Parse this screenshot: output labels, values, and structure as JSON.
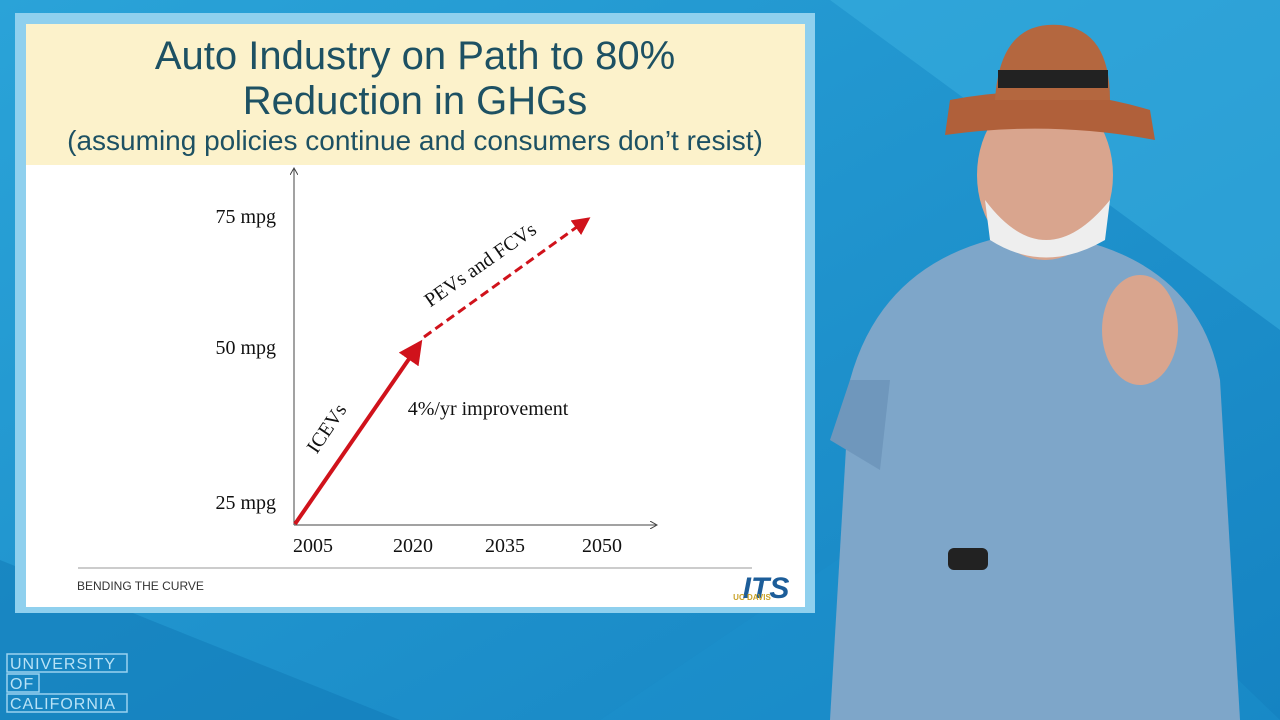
{
  "slide": {
    "title_lines": [
      "Auto Industry on Path to 80%",
      "Reduction in GHGs"
    ],
    "subtitle": "(assuming policies continue and consumers don’t resist)",
    "y_labels": [
      "75 mpg",
      "50 mpg",
      "25 mpg"
    ],
    "x_labels": [
      "2005",
      "2020",
      "2035",
      "2050"
    ],
    "annotations": {
      "icevs": "ICEVs",
      "pevs": "PEVs and FCVs",
      "improvement": "4%/yr improvement"
    },
    "footer": "BENDING THE CURVE",
    "logo": {
      "main": "ITS",
      "small": "UC DAVIS"
    }
  },
  "watermark": [
    "UNIVERSITY",
    "OF",
    "CALIFORNIA"
  ]
}
